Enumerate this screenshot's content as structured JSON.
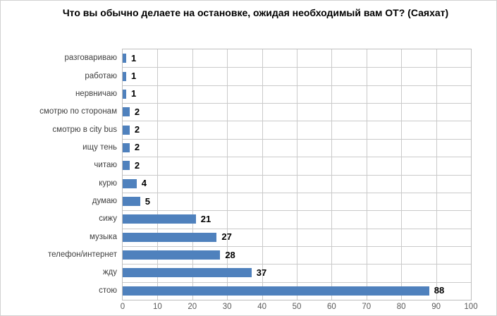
{
  "chart_data": {
    "type": "bar",
    "orientation": "horizontal",
    "title": "Что вы обычно делаете на остановке, ожидая необходимый вам ОТ? (Саяхат)",
    "categories": [
      "разговариваю",
      "работаю",
      "нервничаю",
      "смотрю по сторонам",
      "смотрю в city bus",
      "ищу тень",
      "читаю",
      "курю",
      "думаю",
      "сижу",
      "музыка",
      "телефон/интернет",
      "жду",
      "стою"
    ],
    "values": [
      1,
      1,
      1,
      2,
      2,
      2,
      2,
      4,
      5,
      21,
      27,
      28,
      37,
      88
    ],
    "x_ticks": [
      0,
      10,
      20,
      30,
      40,
      50,
      60,
      70,
      80,
      90,
      100
    ],
    "xlim": [
      0,
      100
    ],
    "grid": "full",
    "legend": "none",
    "data_labels": "outside-end",
    "colors": {
      "bar": "#4f81bd",
      "gridline": "#cacaca",
      "plot_border": "#bdbdbd",
      "tick_label": "#595959",
      "category_label": "#3f3f3f",
      "title": "#000000"
    }
  }
}
